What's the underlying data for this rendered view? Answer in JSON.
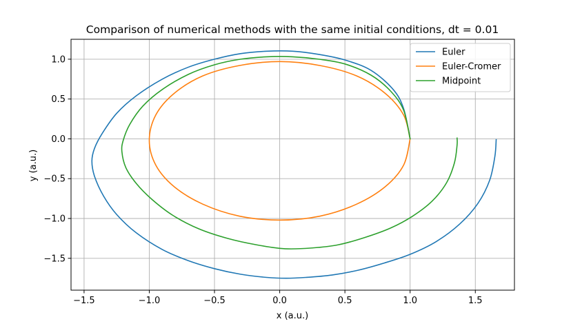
{
  "chart_data": {
    "type": "line",
    "title": "Comparison of numerical methods with the same initial conditions, dt = 0.01",
    "xlabel": "x (a.u.)",
    "ylabel": "y (a.u.)",
    "xlim": [
      -1.6,
      1.8
    ],
    "ylim": [
      -1.9,
      1.25
    ],
    "x_ticks": [
      -1.5,
      -1.0,
      -0.5,
      0.0,
      0.5,
      1.0,
      1.5
    ],
    "x_tick_labels": [
      "−1.5",
      "−1.0",
      "−0.5",
      "0.0",
      "0.5",
      "1.0",
      "1.5"
    ],
    "y_ticks": [
      -1.5,
      -1.0,
      -0.5,
      0.0,
      0.5,
      1.0
    ],
    "y_tick_labels": [
      "−1.5",
      "−1.0",
      "−0.5",
      "0.0",
      "0.5",
      "1.0"
    ],
    "grid": true,
    "legend_position": "top-right",
    "series": [
      {
        "name": "Euler",
        "color": "#1f77b4",
        "x": [
          1.0,
          0.95,
          0.87,
          0.7,
          0.5,
          0.3,
          0.1,
          -0.1,
          -0.3,
          -0.5,
          -0.7,
          -0.9,
          -1.1,
          -1.25,
          -1.36,
          -1.42,
          -1.44,
          -1.42,
          -1.35,
          -1.25,
          -1.1,
          -0.9,
          -0.7,
          -0.5,
          -0.3,
          -0.1,
          0.05,
          0.2,
          0.4,
          0.6,
          0.8,
          1.0,
          1.2,
          1.38,
          1.52,
          1.61,
          1.65,
          1.66
        ],
        "y": [
          0.0,
          0.38,
          0.62,
          0.86,
          0.99,
          1.06,
          1.1,
          1.1,
          1.07,
          1.0,
          0.9,
          0.75,
          0.54,
          0.32,
          0.07,
          -0.12,
          -0.28,
          -0.47,
          -0.72,
          -0.95,
          -1.18,
          -1.39,
          -1.53,
          -1.63,
          -1.7,
          -1.74,
          -1.75,
          -1.74,
          -1.71,
          -1.65,
          -1.56,
          -1.45,
          -1.29,
          -1.07,
          -0.81,
          -0.52,
          -0.22,
          -0.01
        ]
      },
      {
        "name": "Euler-Cromer",
        "color": "#ff7f0e",
        "x": [
          1.0,
          0.95,
          0.81,
          0.59,
          0.31,
          0.0,
          -0.31,
          -0.59,
          -0.81,
          -0.95,
          -1.0,
          -0.95,
          -0.81,
          -0.59,
          -0.31,
          0.0,
          0.31,
          0.59,
          0.81,
          0.95,
          1.0
        ],
        "y": [
          0.0,
          0.3,
          0.57,
          0.79,
          0.92,
          0.97,
          0.92,
          0.79,
          0.57,
          0.3,
          -0.02,
          -0.33,
          -0.6,
          -0.82,
          -0.97,
          -1.02,
          -0.97,
          -0.82,
          -0.6,
          -0.33,
          0.0
        ]
      },
      {
        "name": "Midpoint",
        "color": "#2ca02c",
        "x": [
          1.0,
          0.95,
          0.85,
          0.7,
          0.5,
          0.3,
          0.1,
          -0.1,
          -0.3,
          -0.5,
          -0.7,
          -0.9,
          -1.05,
          -1.15,
          -1.2,
          -1.21,
          -1.18,
          -1.1,
          -0.98,
          -0.82,
          -0.62,
          -0.4,
          -0.18,
          0.04,
          0.25,
          0.45,
          0.65,
          0.85,
          1.02,
          1.17,
          1.28,
          1.34,
          1.36,
          1.36
        ],
        "y": [
          0.0,
          0.36,
          0.6,
          0.8,
          0.94,
          1.0,
          1.03,
          1.03,
          1.0,
          0.93,
          0.81,
          0.62,
          0.41,
          0.18,
          -0.02,
          -0.16,
          -0.36,
          -0.56,
          -0.76,
          -0.96,
          -1.13,
          -1.25,
          -1.33,
          -1.38,
          -1.37,
          -1.33,
          -1.24,
          -1.12,
          -0.97,
          -0.78,
          -0.55,
          -0.3,
          -0.08,
          0.01
        ]
      }
    ]
  }
}
